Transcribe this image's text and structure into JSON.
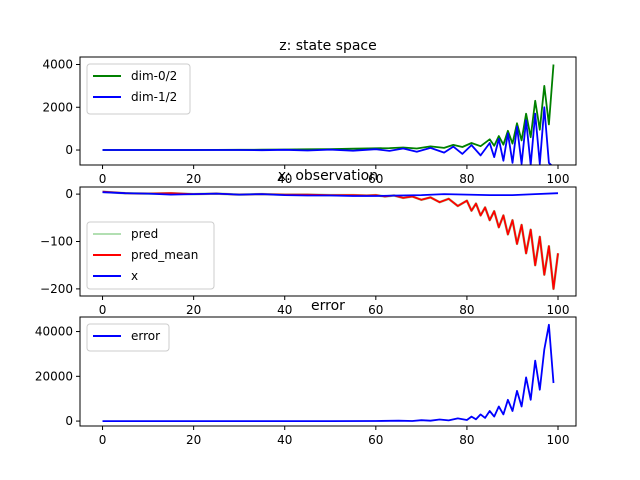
{
  "chart_data": [
    {
      "type": "line",
      "title": "z: state space",
      "xlabel": "",
      "ylabel": "",
      "xlim": [
        -4.95,
        103.95
      ],
      "ylim": [
        -700,
        4350
      ],
      "xticks": [
        0,
        20,
        40,
        60,
        80,
        100
      ],
      "yticks": [
        0,
        2000,
        4000
      ],
      "grid": false,
      "legend": "upper left",
      "series": [
        {
          "name": "dim-0/2",
          "color": "#008000",
          "x": [
            0,
            5,
            10,
            15,
            20,
            25,
            30,
            35,
            40,
            45,
            50,
            55,
            60,
            63,
            66,
            69,
            72,
            75,
            77,
            79,
            81,
            83,
            85,
            86,
            87,
            88,
            89,
            90,
            91,
            92,
            93,
            94,
            95,
            96,
            97,
            98,
            99
          ],
          "y": [
            0,
            0,
            0,
            0,
            0,
            5,
            10,
            15,
            25,
            35,
            45,
            60,
            80,
            90,
            120,
            70,
            170,
            100,
            240,
            140,
            330,
            180,
            500,
            200,
            650,
            250,
            900,
            300,
            1250,
            450,
            1700,
            600,
            2300,
            950,
            3000,
            1200,
            4000
          ]
        },
        {
          "name": "dim-1/2",
          "color": "#0000ff",
          "x": [
            0,
            5,
            10,
            15,
            20,
            25,
            30,
            35,
            40,
            45,
            50,
            55,
            60,
            63,
            66,
            69,
            72,
            75,
            77,
            79,
            81,
            83,
            85,
            86,
            87,
            88,
            89,
            90,
            91,
            92,
            93,
            94,
            95,
            96,
            97,
            98,
            99
          ],
          "y": [
            0,
            0,
            0,
            0,
            0,
            0,
            0,
            -10,
            10,
            -20,
            20,
            -30,
            40,
            -40,
            70,
            -80,
            100,
            -120,
            160,
            -180,
            230,
            -250,
            330,
            -330,
            520,
            -500,
            780,
            -600,
            1100,
            -650,
            1400,
            -700,
            1700,
            -650,
            2000,
            -600,
            -800
          ]
        }
      ]
    },
    {
      "type": "line",
      "title": "x: observation",
      "xlabel": "",
      "ylabel": "",
      "xlim": [
        -4.95,
        103.95
      ],
      "ylim": [
        -215,
        15
      ],
      "xticks": [
        0,
        20,
        40,
        60,
        80,
        100
      ],
      "yticks": [
        0,
        -100,
        -200
      ],
      "grid": false,
      "legend": "center left",
      "series": [
        {
          "name": "pred",
          "color": "#7fc97f",
          "x": [
            0,
            5,
            10,
            15,
            20,
            25,
            30,
            35,
            40,
            45,
            50,
            55,
            58,
            60,
            62,
            64,
            66,
            68,
            70,
            72,
            74,
            76,
            78,
            80,
            81,
            82,
            83,
            84,
            85,
            86,
            87,
            88,
            89,
            90,
            91,
            92,
            93,
            94,
            95,
            96,
            97,
            98,
            99,
            100
          ],
          "y": [
            5,
            2,
            1,
            2,
            0,
            1,
            -1,
            0,
            -1,
            -1,
            -2,
            -2,
            -3,
            -2,
            -5,
            -3,
            -8,
            -5,
            -12,
            -7,
            -17,
            -10,
            -25,
            -14,
            -35,
            -20,
            -45,
            -28,
            -55,
            -36,
            -70,
            -45,
            -85,
            -55,
            -105,
            -65,
            -125,
            -75,
            -150,
            -90,
            -170,
            -110,
            -200,
            -125
          ]
        },
        {
          "name": "pred_mean",
          "color": "#ff0000",
          "x": [
            0,
            5,
            10,
            15,
            20,
            25,
            30,
            35,
            40,
            45,
            50,
            55,
            58,
            60,
            62,
            64,
            66,
            68,
            70,
            72,
            74,
            76,
            78,
            80,
            81,
            82,
            83,
            84,
            85,
            86,
            87,
            88,
            89,
            90,
            91,
            92,
            93,
            94,
            95,
            96,
            97,
            98,
            99,
            100
          ],
          "y": [
            5,
            2,
            1,
            2,
            0,
            1,
            -1,
            0,
            -1,
            -1,
            -2,
            -2,
            -3,
            -2,
            -5,
            -3,
            -8,
            -5,
            -12,
            -7,
            -17,
            -10,
            -25,
            -14,
            -35,
            -20,
            -45,
            -28,
            -55,
            -36,
            -70,
            -45,
            -85,
            -55,
            -105,
            -65,
            -125,
            -75,
            -150,
            -90,
            -170,
            -110,
            -200,
            -125
          ]
        },
        {
          "name": "x",
          "color": "#0000ff",
          "x": [
            0,
            5,
            10,
            15,
            20,
            25,
            30,
            35,
            40,
            45,
            50,
            55,
            60,
            65,
            70,
            75,
            80,
            85,
            90,
            95,
            100
          ],
          "y": [
            4,
            2,
            1,
            -1,
            0,
            1,
            -1,
            0,
            -2,
            -3,
            -3,
            -4,
            -4,
            -3,
            -2,
            0,
            -1,
            -2,
            -2,
            0,
            2
          ]
        }
      ]
    },
    {
      "type": "line",
      "title": "error",
      "xlabel": "",
      "ylabel": "",
      "xlim": [
        -4.95,
        103.95
      ],
      "ylim": [
        -2200,
        46500
      ],
      "xticks": [
        0,
        20,
        40,
        60,
        80,
        100
      ],
      "yticks": [
        0,
        20000,
        40000
      ],
      "grid": false,
      "legend": "upper left",
      "series": [
        {
          "name": "error",
          "color": "#0000ff",
          "x": [
            0,
            10,
            20,
            30,
            40,
            50,
            60,
            65,
            68,
            70,
            72,
            74,
            76,
            78,
            80,
            81,
            82,
            83,
            84,
            85,
            86,
            87,
            88,
            89,
            90,
            91,
            92,
            93,
            94,
            95,
            96,
            97,
            98,
            99
          ],
          "y": [
            0,
            0,
            0,
            0,
            0,
            0,
            50,
            150,
            50,
            400,
            150,
            700,
            300,
            1200,
            500,
            2000,
            800,
            3000,
            1400,
            4500,
            2000,
            6500,
            3000,
            9500,
            4500,
            13500,
            6500,
            19500,
            9500,
            27000,
            14000,
            32000,
            43000,
            17000
          ]
        }
      ]
    }
  ]
}
